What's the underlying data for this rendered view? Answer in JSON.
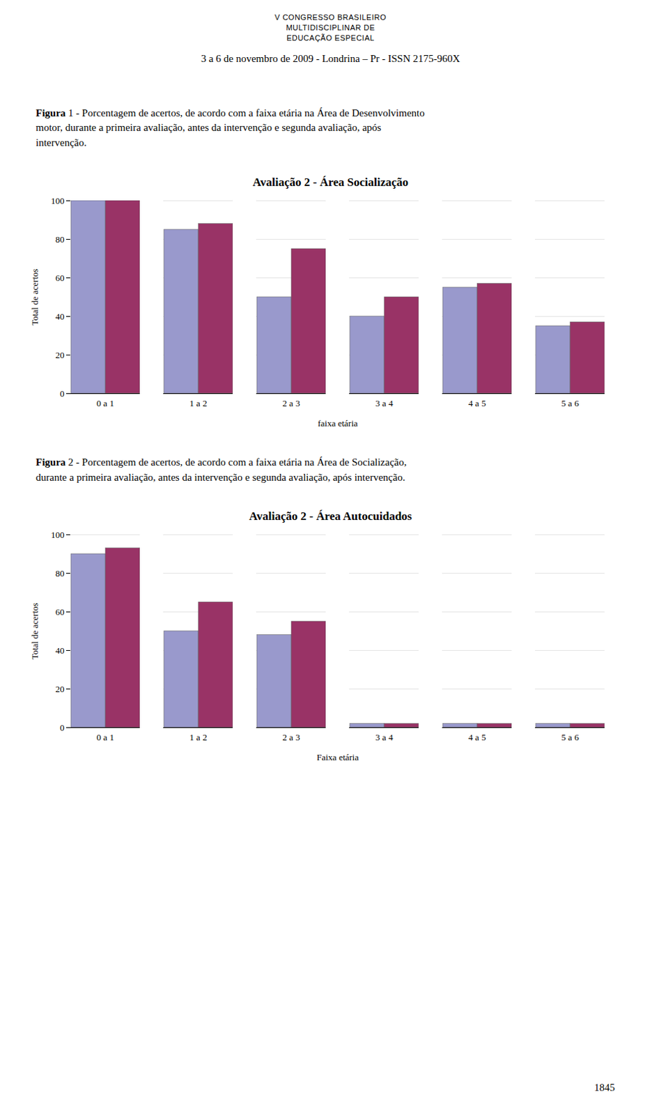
{
  "chart_data": [
    {
      "type": "bar",
      "title": "Avaliação 2 - Área Socialização",
      "subtitle": "Figura 1 - Porcentagem de acertos, de acordo com a faixa etária na Área de Desenvolvimento\nmotor,  durante  a  primeira  avaliação,  antes  da  intervenção  e  segunda  avaliação,  após\nintervenção.",
      "annotations": [
        "V CONGRESSO BRASILEIRO",
        "MULTIDISCIPLINAR DE",
        "EDUCAÇÃO ESPECIAL",
        "3 a 6 de novembro de 2009 -  Londrina – Pr - ISSN 2175-960X"
      ],
      "x_label": "faixa etária",
      "y_label": "Total de acertos",
      "categories": [
        "0 a 1",
        "1 a 2",
        "2 a 3",
        "3 a 4",
        "4 a 5",
        "5 a 6"
      ],
      "series": [
        {
          "color": "#9999CC",
          "values": [
            100,
            85,
            50,
            40,
            55,
            35
          ]
        },
        {
          "color": "#993366",
          "values": [
            100,
            88,
            75,
            50,
            57,
            37
          ]
        }
      ],
      "ylim": [
        0,
        100
      ],
      "yticks": [
        0,
        20,
        40,
        60,
        80,
        100
      ],
      "grid": true
    },
    {
      "type": "bar",
      "title": "Avaliação 2 - Área Autocuidados",
      "subtitle": "Figura 2 -  Porcentagem de acertos, de acordo com a faixa etária na Área de Socialização,\ndurante a primeira avaliação, antes da intervenção e segunda avaliação, após intervenção.",
      "annotations": [
        "1845"
      ],
      "x_label": "Faixa etária",
      "y_label": "Total de acertos",
      "categories": [
        "0 a 1",
        "1 a 2",
        "2 a 3",
        "3 a 4",
        "4 a 5",
        "5 a 6"
      ],
      "series": [
        {
          "color": "#9999CC",
          "values": [
            90,
            50,
            48,
            2,
            2,
            2
          ]
        },
        {
          "color": "#993366",
          "values": [
            93,
            65,
            55,
            2,
            2,
            2
          ]
        }
      ],
      "ylim": [
        0,
        100
      ],
      "yticks": [
        0,
        20,
        40,
        60,
        80,
        100
      ],
      "grid": true
    }
  ]
}
